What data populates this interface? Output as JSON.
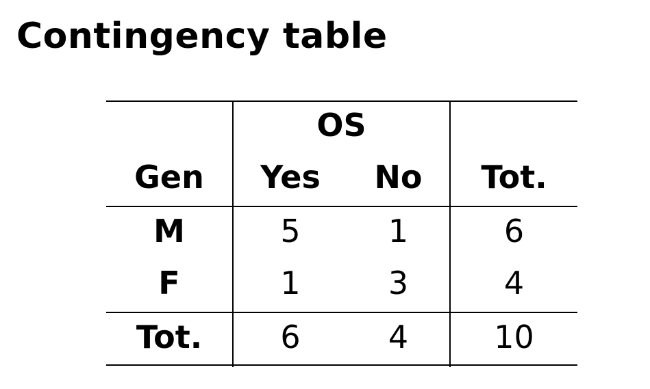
{
  "title": "Contingency table",
  "table": {
    "group_header": "OS",
    "row_header_label": "Gen",
    "columns": [
      "Yes",
      "No",
      "Tot."
    ],
    "rows": [
      {
        "label": "M",
        "values": [
          "5",
          "1",
          "6"
        ]
      },
      {
        "label": "F",
        "values": [
          "1",
          "3",
          "4"
        ]
      }
    ],
    "total_row": {
      "label": "Tot.",
      "values": [
        "6",
        "4",
        "10"
      ]
    }
  }
}
